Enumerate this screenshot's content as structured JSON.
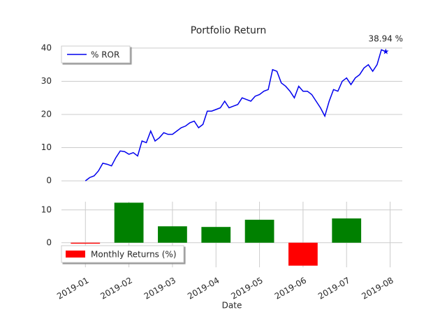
{
  "chart_data": [
    {
      "type": "line",
      "title": "Portfolio Return",
      "x": [
        0,
        0.1,
        0.2,
        0.3,
        0.4,
        0.5,
        0.6,
        0.7,
        0.8,
        0.9,
        1,
        1.1,
        1.2,
        1.3,
        1.4,
        1.5,
        1.6,
        1.7,
        1.8,
        1.9,
        2,
        2.1,
        2.2,
        2.3,
        2.4,
        2.5,
        2.6,
        2.7,
        2.8,
        2.9,
        3,
        3.1,
        3.2,
        3.3,
        3.4,
        3.5,
        3.6,
        3.7,
        3.8,
        3.9,
        4,
        4.1,
        4.2,
        4.3,
        4.4,
        4.5,
        4.6,
        4.7,
        4.8,
        4.9,
        5,
        5.1,
        5.2,
        5.3,
        5.4,
        5.5,
        5.6,
        5.7,
        5.8,
        5.9,
        6,
        6.1,
        6.2,
        6.3,
        6.4,
        6.5,
        6.6,
        6.7,
        6.8,
        6.9
      ],
      "series": [
        {
          "name": "% ROR",
          "color": "#0000ee",
          "values": [
            0,
            1,
            1.5,
            3,
            5.3,
            5,
            4.5,
            7,
            9,
            8.8,
            8,
            8.5,
            7.5,
            12,
            11.5,
            15,
            12,
            13,
            14.5,
            14,
            14,
            15,
            16,
            16.5,
            17.5,
            18,
            16,
            17,
            21,
            21,
            21.5,
            22,
            24,
            22,
            22.5,
            23,
            25,
            24.5,
            24,
            25.5,
            26,
            27,
            27.5,
            33.5,
            33,
            29.5,
            28.5,
            27,
            25,
            28.5,
            27,
            27,
            26,
            24,
            22,
            19.5,
            24,
            27.5,
            27,
            30,
            31,
            29,
            31,
            32,
            34,
            35,
            33,
            35,
            39.5,
            38.94
          ]
        }
      ],
      "annotation": "38.94 %",
      "xlim": [
        -0.55,
        7.28
      ],
      "ylim": [
        -2.5,
        42.5
      ],
      "yticks": [
        0,
        10,
        20,
        30,
        40
      ],
      "grid": true,
      "legend": "upper left"
    },
    {
      "type": "bar",
      "x_label": "Date",
      "x": [
        0,
        1,
        2,
        3,
        4,
        5,
        6
      ],
      "series": [
        {
          "name": "Monthly Returns (%)",
          "values": [
            -0.3,
            12.2,
            5.0,
            4.8,
            7.0,
            -7.0,
            7.4
          ],
          "colors": [
            "#ff0000",
            "#008000",
            "#008000",
            "#008000",
            "#008000",
            "#ff0000",
            "#008000"
          ]
        }
      ],
      "bar_width": 0.67,
      "xlim": [
        -0.55,
        7.28
      ],
      "xticks": [
        {
          "value": 0,
          "label": "2019-01"
        },
        {
          "value": 1,
          "label": "2019-02"
        },
        {
          "value": 2,
          "label": "2019-03"
        },
        {
          "value": 3,
          "label": "2019-04"
        },
        {
          "value": 4,
          "label": "2019-05"
        },
        {
          "value": 5,
          "label": "2019-06"
        },
        {
          "value": 6,
          "label": "2019-07"
        },
        {
          "value": 7,
          "label": "2019-08"
        }
      ],
      "ylim": [
        -7.5,
        12.5
      ],
      "yticks": [
        0,
        10
      ],
      "grid": true,
      "legend": "lower left"
    }
  ]
}
